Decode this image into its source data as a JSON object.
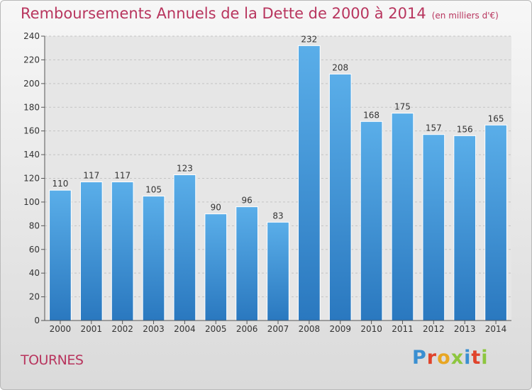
{
  "header": {
    "title": "Remboursements Annuels de la Dette de 2000 à 2014",
    "subtitle": "(en milliers d'€)"
  },
  "footer": {
    "city": "TOURNES",
    "logo": "Proxiti"
  },
  "colors": {
    "bar": "#3d93d8",
    "title": "#b8355e"
  },
  "chart_data": {
    "type": "bar",
    "title": "Remboursements Annuels de la Dette de 2000 à 2014",
    "subtitle": "(en milliers d'€)",
    "categories": [
      "2000",
      "2001",
      "2002",
      "2003",
      "2004",
      "2005",
      "2006",
      "2007",
      "2008",
      "2009",
      "2010",
      "2011",
      "2012",
      "2013",
      "2014"
    ],
    "values": [
      110,
      117,
      117,
      105,
      123,
      90,
      96,
      83,
      232,
      208,
      168,
      175,
      157,
      156,
      165
    ],
    "ylim": [
      0,
      240
    ],
    "yticks": [
      0,
      20,
      40,
      60,
      80,
      100,
      120,
      140,
      160,
      180,
      200,
      220,
      240
    ],
    "grid": true,
    "data_labels": true
  }
}
